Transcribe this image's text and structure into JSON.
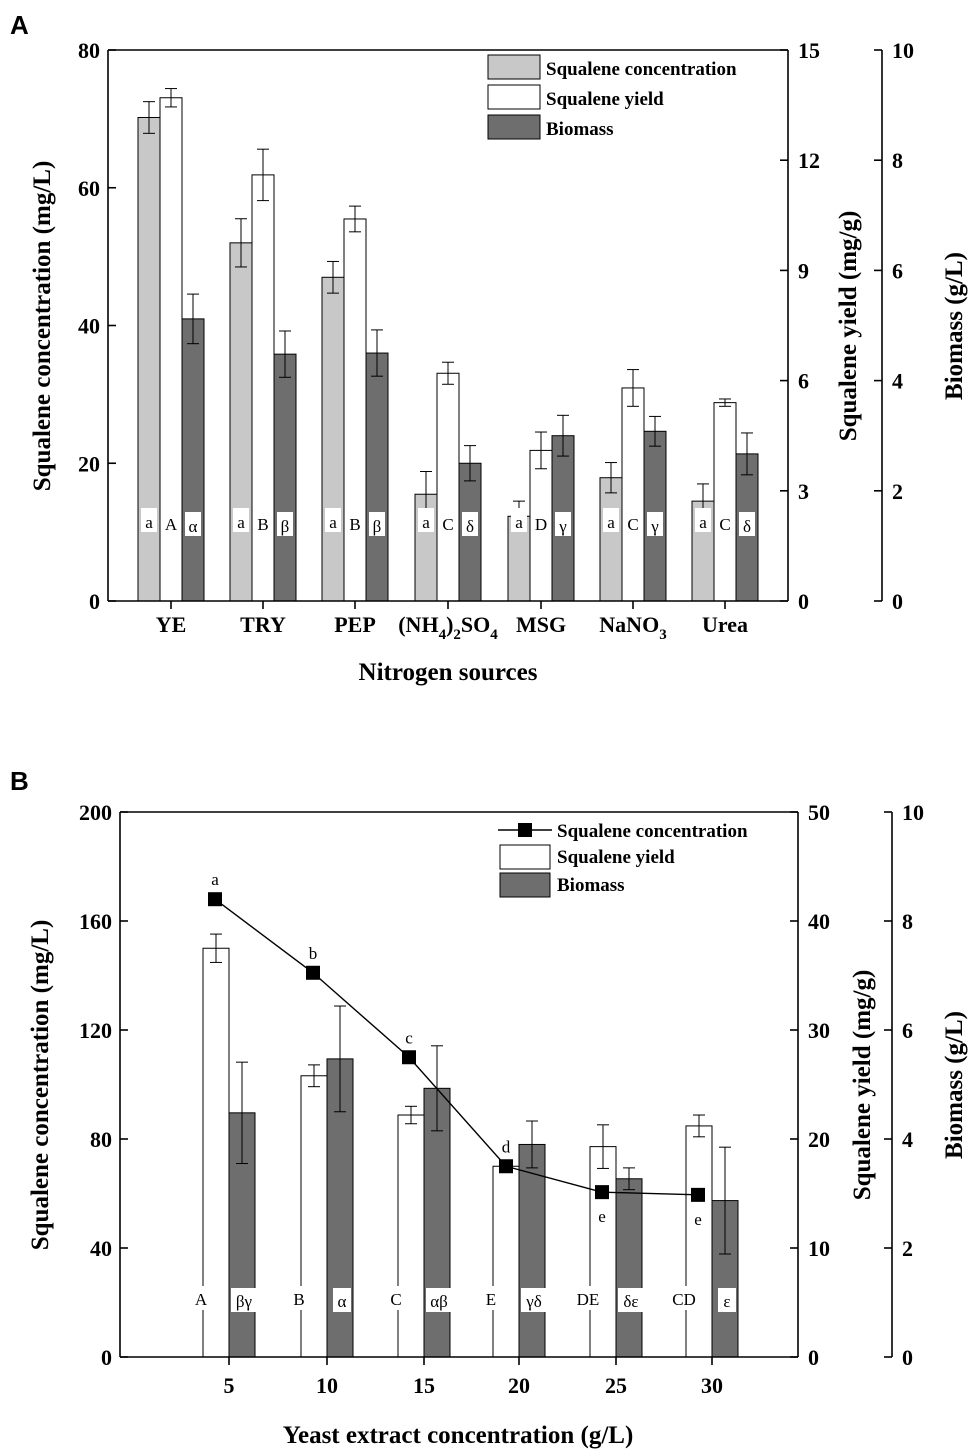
{
  "chart_data": [
    {
      "panel": "A",
      "type": "bar",
      "xlabel": "Nitrogen sources",
      "categories": [
        "YE",
        "TRY",
        "PEP",
        "(NH4)2SO4",
        "MSG",
        "NaNO3",
        "Urea"
      ],
      "ylabels": {
        "left": "Squalene concentration (mg/L)",
        "right1": "Squalene yield (mg/g)",
        "right2": "Biomass (g/L)"
      },
      "axes": {
        "left": {
          "min": 0,
          "max": 80,
          "ticks": [
            0,
            20,
            40,
            60,
            80
          ]
        },
        "right1": {
          "min": 0,
          "max": 15,
          "ticks": [
            0,
            3,
            6,
            9,
            12,
            15
          ]
        },
        "right2": {
          "min": 0,
          "max": 10,
          "ticks": [
            0,
            2,
            4,
            6,
            8,
            10
          ]
        }
      },
      "series": [
        {
          "name": "Squalene concentration",
          "axis": "left",
          "color": "#c8c8c8",
          "values": [
            70.2,
            52.0,
            47.0,
            15.5,
            12.3,
            17.9,
            14.5
          ],
          "errors": [
            2.3,
            3.5,
            2.3,
            3.3,
            2.2,
            2.2,
            2.5
          ],
          "sig": [
            "a",
            "a",
            "a",
            "a",
            "a",
            "a",
            "a"
          ]
        },
        {
          "name": "Squalene yield",
          "axis": "right1",
          "color": "#ffffff",
          "values": [
            13.7,
            11.6,
            10.4,
            6.2,
            4.1,
            5.8,
            5.4
          ],
          "errors": [
            0.25,
            0.7,
            0.35,
            0.3,
            0.5,
            0.5,
            0.1
          ],
          "sig": [
            "A",
            "B",
            "B",
            "C",
            "D",
            "C",
            "C"
          ]
        },
        {
          "name": "Biomass",
          "axis": "right2",
          "color": "#6e6e6e",
          "values": [
            5.12,
            4.48,
            4.5,
            2.5,
            3.0,
            3.08,
            2.67
          ],
          "errors": [
            0.45,
            0.42,
            0.42,
            0.32,
            0.37,
            0.27,
            0.38
          ],
          "sig": [
            "α",
            "β",
            "β",
            "δ",
            "γ",
            "γ",
            "δ"
          ]
        }
      ]
    },
    {
      "panel": "B",
      "type": "bar+line",
      "xlabel": "Yeast extract concentration (g/L)",
      "x": [
        5,
        10,
        15,
        20,
        25,
        30
      ],
      "categories": [
        "5",
        "10",
        "15",
        "20",
        "25",
        "30"
      ],
      "ylabels": {
        "left": "Squalene concentration (mg/L)",
        "right1": "Squalene yield (mg/g)",
        "right2": "Biomass (g/L)"
      },
      "axes": {
        "left": {
          "min": 0,
          "max": 200,
          "ticks": [
            0,
            40,
            80,
            120,
            160,
            200
          ]
        },
        "right1": {
          "min": 0,
          "max": 50,
          "ticks": [
            0,
            10,
            20,
            30,
            40,
            50
          ]
        },
        "right2": {
          "min": 0,
          "max": 10,
          "ticks": [
            0,
            2,
            4,
            6,
            8,
            10
          ]
        }
      },
      "series": [
        {
          "name": "Squalene concentration",
          "type": "line",
          "axis": "left",
          "color": "#000000",
          "values": [
            168,
            141,
            110,
            70,
            60.5,
            59.5
          ],
          "sig": [
            "a",
            "b",
            "c",
            "d",
            "e",
            "e"
          ]
        },
        {
          "name": "Squalene yield",
          "type": "bar",
          "axis": "right1",
          "color": "#ffffff",
          "values": [
            37.5,
            25.8,
            22.2,
            17.5,
            19.3,
            21.2
          ],
          "errors": [
            1.3,
            1.0,
            0.8,
            0.5,
            2.0,
            1.0
          ],
          "sig": [
            "A",
            "B",
            "C",
            "E",
            "DE",
            "CD"
          ]
        },
        {
          "name": "Biomass",
          "type": "bar",
          "axis": "right2",
          "color": "#6e6e6e",
          "values": [
            4.48,
            5.47,
            4.93,
            3.9,
            3.27,
            2.87
          ],
          "errors": [
            0.93,
            0.97,
            0.78,
            0.43,
            0.2,
            0.98
          ],
          "sig": [
            "βγ",
            "α",
            "αβ",
            "γδ",
            "δε",
            "ε"
          ]
        }
      ]
    }
  ]
}
